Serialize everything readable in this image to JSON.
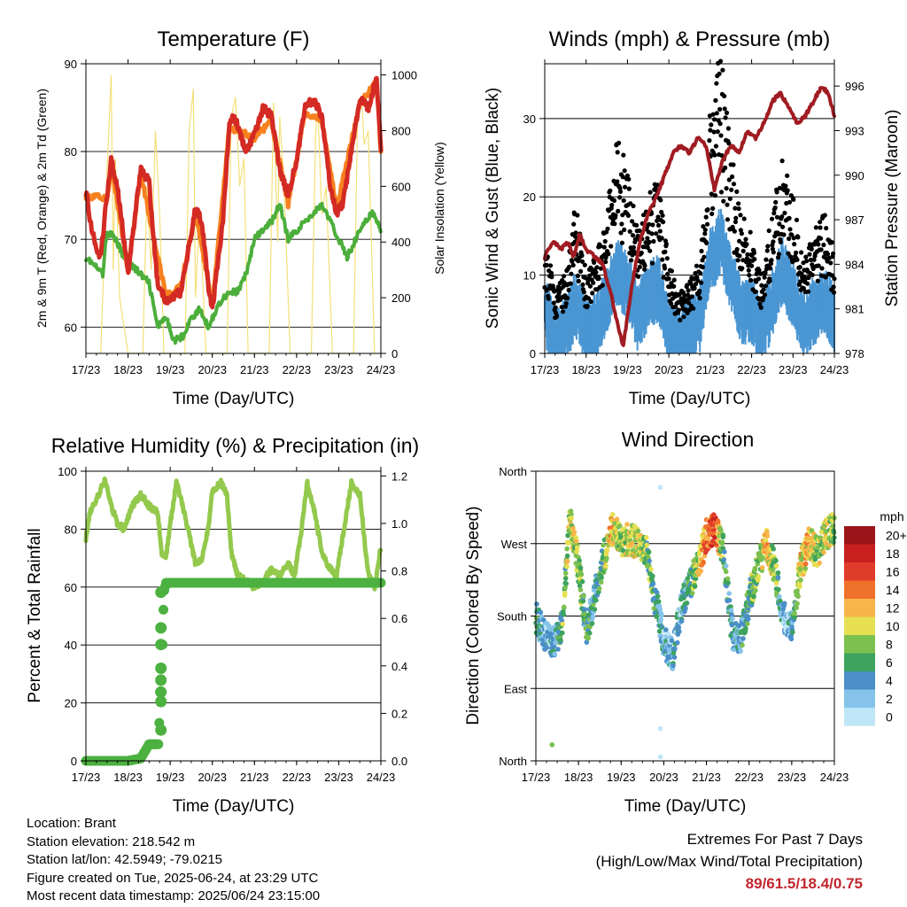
{
  "colors": {
    "red": "#d42a24",
    "orange": "#f7811f",
    "green": "#4cae3b",
    "yellow": "#f4e07a",
    "black": "#000000",
    "blue": "#4a96d3",
    "maroon": "#a01c22",
    "rh": "#93c94c",
    "precip": "#4cb140"
  },
  "x_ticks": [
    "17/23",
    "18/23",
    "19/23",
    "20/23",
    "21/23",
    "22/23",
    "23/23",
    "24/23"
  ],
  "x_label": "Time (Day/UTC)",
  "panels": {
    "temperature": {
      "title": "Temperature (F)",
      "ylabel_left": "2m & 9m T (Red, Orange) & 2m Td (Green)",
      "ylabel_right": "Solar Insolation (Yellow)",
      "yticks_left": [
        "60",
        "70",
        "80",
        "90"
      ],
      "yticks_right": [
        "0",
        "200",
        "400",
        "600",
        "800",
        "1000"
      ]
    },
    "winds": {
      "title": "Winds (mph) & Pressure (mb)",
      "ylabel_left": "Sonic Wind & Gust (Blue, Black)",
      "ylabel_right": "Station Pressure (Maroon)",
      "yticks_left": [
        "0",
        "10",
        "20",
        "30"
      ],
      "yticks_right": [
        "978",
        "981",
        "984",
        "987",
        "990",
        "993",
        "996"
      ]
    },
    "humidity": {
      "title": "Relative Humidity (%) & Precipitation (in)",
      "ylabel_left": "Percent & Total Rainfall",
      "yticks_left": [
        "0",
        "20",
        "40",
        "60",
        "80",
        "100"
      ],
      "yticks_right": [
        "0.0",
        "0.2",
        "0.4",
        "0.6",
        "0.8",
        "1.0",
        "1.2"
      ]
    },
    "direction": {
      "title": "Wind Direction",
      "ylabel_left": "Direction (Colored By Speed)",
      "yticks_left": [
        "North",
        "East",
        "South",
        "West",
        "North"
      ],
      "colorbar_title": "mph",
      "colorbar_labels": [
        "0",
        "2",
        "4",
        "6",
        "8",
        "10",
        "12",
        "14",
        "16",
        "18",
        "20+"
      ],
      "colorbar_colors": [
        "#bfe6f7",
        "#85c3ea",
        "#4a8fc8",
        "#3da35d",
        "#7cc04f",
        "#e6e052",
        "#f7b54a",
        "#f0712b",
        "#e03c2b",
        "#c7201f",
        "#9b1419"
      ]
    }
  },
  "info": {
    "location": "Location: Brant",
    "elevation": "Station elevation: 218.542 m",
    "latlon": "Station lat/lon: 42.5949; -79.0215",
    "created": "Figure created on Tue, 2025-06-24, at 23:29 UTC",
    "recent": "Most recent data timestamp: 2025/06/24 23:15:00"
  },
  "extremes": {
    "title": "Extremes For Past 7 Days",
    "subtitle": "(High/Low/Max Wind/Total Precipitation)",
    "values": "89/61.5/18.4/0.75"
  },
  "chart_data": [
    {
      "type": "line",
      "title": "Temperature (F)",
      "xlabel": "Time (Day/UTC)",
      "ylabel": "2m & 9m T (Red, Orange) & 2m Td (Green)",
      "y2label": "Solar Insolation (Yellow)",
      "xlim": [
        0,
        7
      ],
      "ylim": [
        57,
        90
      ],
      "y2lim": [
        0,
        1040
      ],
      "series": [
        {
          "name": "2m T",
          "axis": "left",
          "x": [
            0,
            0.1,
            0.25,
            0.35,
            0.5,
            0.6,
            0.75,
            0.9,
            1,
            1.15,
            1.3,
            1.5,
            1.7,
            1.9,
            2,
            2.1,
            2.25,
            2.4,
            2.6,
            2.75,
            2.9,
            3,
            3.1,
            3.25,
            3.4,
            3.5,
            3.6,
            3.8,
            4,
            4.2,
            4.4,
            4.6,
            4.8,
            5,
            5.2,
            5.4,
            5.6,
            5.8,
            5.95,
            6.1,
            6.3,
            6.5,
            6.7,
            6.9,
            7
          ],
          "values": [
            75.5,
            72,
            69,
            68,
            75,
            79,
            76,
            70,
            66,
            72,
            78,
            76.5,
            65,
            63,
            63,
            63.5,
            64,
            68,
            73.5,
            72,
            65,
            62,
            66,
            72,
            83,
            84,
            83,
            80,
            82,
            85,
            84,
            78,
            75,
            79,
            85,
            86,
            84,
            76,
            73,
            74,
            80,
            86,
            85,
            88.5,
            80
          ]
        },
        {
          "name": "9m T",
          "axis": "left",
          "x": [
            0,
            0.5,
            0.6,
            1,
            1.3,
            1.9,
            2.25,
            2.6,
            3,
            3.4,
            3.6,
            4,
            4.4,
            4.8,
            5.2,
            5.6,
            5.95,
            6.5,
            6.9,
            7
          ],
          "values": [
            75,
            74.5,
            78.5,
            66.5,
            77.5,
            63.5,
            64.5,
            73,
            62.5,
            82.5,
            82.5,
            81.5,
            83.5,
            74,
            84.5,
            83.5,
            73.5,
            85.5,
            88,
            80
          ]
        },
        {
          "name": "2m Td",
          "axis": "left",
          "x": [
            0,
            0.2,
            0.4,
            0.5,
            0.7,
            0.9,
            1.1,
            1.3,
            1.5,
            1.7,
            1.9,
            2.1,
            2.3,
            2.5,
            2.7,
            2.9,
            3,
            3.2,
            3.4,
            3.6,
            3.8,
            4,
            4.2,
            4.4,
            4.6,
            4.8,
            5,
            5.2,
            5.4,
            5.6,
            5.8,
            6,
            6.2,
            6.4,
            6.6,
            6.8,
            7
          ],
          "values": [
            68,
            67,
            66,
            71,
            70,
            68,
            67,
            66,
            65,
            60,
            61,
            58.5,
            59,
            61,
            62,
            60,
            61,
            63,
            64,
            64,
            66,
            70,
            71,
            72,
            74,
            70,
            71,
            72,
            73,
            74,
            72,
            70,
            68,
            70,
            72,
            73,
            71
          ]
        },
        {
          "name": "Solar Insolation",
          "axis": "right",
          "x": [
            0.35,
            0.5,
            0.6,
            0.65,
            0.7,
            0.8,
            0.9,
            1.0,
            1.35,
            1.45,
            1.55,
            1.65,
            1.75,
            1.85,
            2.35,
            2.45,
            2.55,
            2.6,
            2.7,
            2.85,
            3.35,
            3.45,
            3.55,
            3.65,
            3.75,
            3.85,
            4.35,
            4.45,
            4.55,
            4.6,
            4.7,
            4.85,
            5.35,
            5.45,
            5.5,
            5.6,
            5.7,
            5.85,
            6.35,
            6.45,
            6.55,
            6.6,
            6.7,
            6.85
          ],
          "values": [
            0,
            650,
            1000,
            300,
            700,
            200,
            100,
            0,
            0,
            600,
            300,
            800,
            500,
            0,
            0,
            800,
            950,
            200,
            500,
            0,
            0,
            850,
            920,
            600,
            700,
            0,
            0,
            900,
            400,
            850,
            600,
            0,
            0,
            780,
            900,
            500,
            600,
            0,
            0,
            860,
            900,
            750,
            800,
            0
          ]
        }
      ]
    },
    {
      "type": "scatter",
      "title": "Winds (mph) & Pressure (mb)",
      "xlabel": "Time (Day/UTC)",
      "ylabel": "Sonic Wind & Gust (Blue, Black)",
      "y2label": "Station Pressure (Maroon)",
      "xlim": [
        0,
        7
      ],
      "ylim": [
        0,
        37
      ],
      "y2lim": [
        978,
        997.5
      ],
      "series": [
        {
          "name": "Gust",
          "axis": "left",
          "x": [
            0,
            0.25,
            0.5,
            0.75,
            1,
            1.25,
            1.5,
            1.75,
            2,
            2.25,
            2.5,
            2.75,
            3,
            3.25,
            3.5,
            3.75,
            4,
            4.25,
            4.5,
            4.75,
            5,
            5.25,
            5.5,
            5.75,
            6,
            6.25,
            6.5,
            6.75,
            7
          ],
          "values": [
            12,
            6,
            8,
            15,
            8,
            10,
            14,
            22,
            18,
            12,
            16,
            17,
            9,
            6,
            7,
            10,
            24,
            30,
            20,
            14,
            12,
            8,
            14,
            20,
            16,
            9,
            12,
            14,
            10
          ]
        },
        {
          "name": "Wind",
          "axis": "left",
          "x": [
            0,
            0.25,
            0.5,
            0.75,
            1,
            1.25,
            1.5,
            1.75,
            2,
            2.25,
            2.5,
            2.75,
            3,
            3.25,
            3.5,
            3.75,
            4,
            4.25,
            4.5,
            4.75,
            5,
            5.25,
            5.5,
            5.75,
            6,
            6.25,
            6.5,
            6.75,
            7
          ],
          "values": [
            7,
            3,
            4,
            8,
            4,
            5,
            8,
            12,
            10,
            6,
            9,
            10,
            4,
            3,
            4,
            6,
            13,
            16,
            11,
            7,
            7,
            4,
            8,
            12,
            9,
            5,
            7,
            8,
            6
          ]
        },
        {
          "name": "Station Pressure",
          "axis": "right",
          "type": "line",
          "x": [
            0,
            0.2,
            0.4,
            0.55,
            0.7,
            0.85,
            1,
            1.2,
            1.4,
            1.6,
            1.8,
            1.9,
            2.1,
            2.3,
            2.5,
            2.7,
            2.9,
            3.1,
            3.3,
            3.5,
            3.7,
            3.9,
            4.1,
            4.3,
            4.5,
            4.7,
            4.9,
            5.1,
            5.3,
            5.5,
            5.7,
            5.9,
            6.1,
            6.3,
            6.5,
            6.7,
            6.85,
            7
          ],
          "values": [
            984.5,
            985.5,
            985,
            985.5,
            984.5,
            986,
            985,
            984.5,
            984,
            982,
            979.5,
            978.5,
            982.5,
            985.5,
            987.5,
            988.5,
            990,
            991.5,
            992,
            991.5,
            992.5,
            992,
            989,
            991,
            992,
            991.5,
            993,
            992.5,
            993.5,
            995,
            995.5,
            994.5,
            993.5,
            994,
            995,
            996,
            995.5,
            994
          ]
        }
      ]
    },
    {
      "type": "line",
      "title": "Relative Humidity (%) & Precipitation (in)",
      "xlabel": "Time (Day/UTC)",
      "ylabel": "Percent & Total Rainfall",
      "xlim": [
        0,
        7
      ],
      "ylim": [
        0,
        100
      ],
      "y2lim": [
        0,
        1.22
      ],
      "series": [
        {
          "name": "Relative Humidity",
          "axis": "left",
          "x": [
            0,
            0.1,
            0.3,
            0.45,
            0.6,
            0.75,
            0.9,
            1.1,
            1.3,
            1.5,
            1.7,
            1.8,
            1.9,
            2.0,
            2.15,
            2.3,
            2.45,
            2.6,
            2.75,
            2.9,
            3.0,
            3.2,
            3.35,
            3.45,
            3.6,
            3.8,
            4.0,
            4.2,
            4.4,
            4.6,
            4.8,
            4.95,
            5.1,
            5.25,
            5.4,
            5.6,
            5.8,
            5.95,
            6.1,
            6.3,
            6.5,
            6.7,
            6.85,
            7
          ],
          "values": [
            77,
            86,
            92,
            97,
            88,
            82,
            80,
            88,
            92,
            88,
            86,
            72,
            70,
            82,
            96,
            88,
            78,
            68,
            70,
            80,
            93,
            96,
            92,
            72,
            64,
            62,
            60,
            62,
            66,
            64,
            68,
            64,
            78,
            96,
            88,
            72,
            66,
            64,
            78,
            96,
            92,
            64,
            60,
            74
          ]
        },
        {
          "name": "Total Precipitation",
          "axis": "right",
          "x": [
            0,
            0.5,
            1.0,
            1.3,
            1.4,
            1.5,
            1.6,
            1.72,
            1.74,
            1.76,
            1.78,
            1.8,
            1.82,
            1.85,
            1.9,
            2.0,
            3.0,
            4.0,
            5.0,
            6.0,
            7.0
          ],
          "values": [
            0,
            0,
            0,
            0.01,
            0.04,
            0.07,
            0.07,
            0.07,
            0.16,
            0.29,
            0.34,
            0.39,
            0.49,
            0.71,
            0.75,
            0.75,
            0.75,
            0.75,
            0.75,
            0.75,
            0.75
          ]
        }
      ]
    },
    {
      "type": "scatter",
      "title": "Wind Direction",
      "xlabel": "Time (Day/UTC)",
      "ylabel": "Direction (Colored By Speed)",
      "xlim": [
        0,
        7
      ],
      "ylim": [
        0,
        360
      ],
      "y_ticks": {
        "0": "North",
        "90": "East",
        "180": "South",
        "270": "West",
        "360": "North"
      },
      "colorbar": {
        "title": "mph",
        "range": [
          0,
          20
        ]
      },
      "series": [
        {
          "name": "Wind Direction",
          "x": [
            0,
            0.2,
            0.4,
            0.6,
            0.8,
            1,
            1.2,
            1.4,
            1.6,
            1.8,
            2,
            2.2,
            2.4,
            2.6,
            2.8,
            3,
            3.2,
            3.4,
            3.6,
            3.8,
            4,
            4.2,
            4.4,
            4.6,
            4.8,
            5,
            5.2,
            5.4,
            5.6,
            5.8,
            6,
            6.2,
            6.4,
            6.6,
            6.8,
            7
          ],
          "values": [
            180,
            155,
            145,
            165,
            300,
            240,
            160,
            210,
            255,
            290,
            275,
            275,
            270,
            260,
            200,
            150,
            130,
            190,
            220,
            240,
            280,
            290,
            260,
            160,
            150,
            200,
            240,
            270,
            240,
            180,
            165,
            240,
            270,
            260,
            280,
            290
          ],
          "speed": [
            6,
            2,
            3,
            6,
            10,
            8,
            5,
            4,
            8,
            12,
            8,
            10,
            10,
            7,
            6,
            3,
            3,
            3,
            6,
            9,
            14,
            16,
            6,
            4,
            4,
            6,
            8,
            12,
            8,
            2,
            3,
            10,
            12,
            8,
            10,
            8
          ]
        }
      ]
    }
  ]
}
